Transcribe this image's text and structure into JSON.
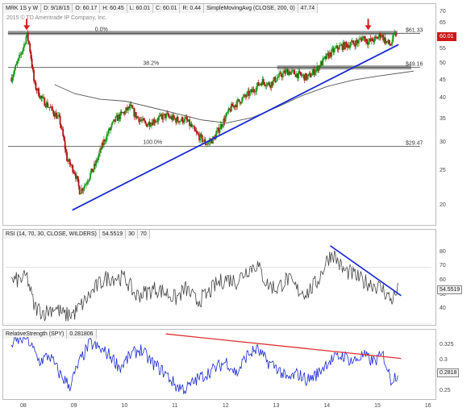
{
  "price_header": {
    "symbol": "MRK 1S y W",
    "date": "D: 9/18/15",
    "open": "O: 60.17",
    "high": "H: 60.45",
    "low": "L: 60.01",
    "close": "C: 60.01",
    "range": "R: 0.44",
    "sma_label": "SimpleMovingAvg (CLOSE, 200, 0)",
    "sma_value": "47.74"
  },
  "copyright": "2015 © TD Ameritrade IP Company, Inc.",
  "rsi_header": {
    "label": "RSI (14, 70, 30, CLOSE, WILDERS)",
    "value": "54.5519",
    "lower": "30",
    "upper": "70"
  },
  "rs_header": {
    "label": "RelativeStrength (SPY)",
    "value": "0.281806"
  },
  "colors": {
    "up": "#1f9a1f",
    "down": "#b01212",
    "sma": "#555555",
    "trendline": "#1a2ad0",
    "rs_line": "#1a2ad0",
    "rs_trend": "#e03030",
    "fib_line": "#444444",
    "resistance_band": "#9a9a9a",
    "arrow": "#d42020"
  },
  "chart_data": [
    {
      "type": "candlestick",
      "title": "",
      "x_labels": [
        "08",
        "09",
        "10",
        "11",
        "12",
        "13",
        "14",
        "15",
        "16"
      ],
      "y_ticks": [
        20,
        25,
        30,
        35,
        40,
        45,
        50,
        55,
        60,
        65,
        70
      ],
      "y_scale": "log",
      "ylim": [
        18,
        70
      ],
      "current_price_tag": "60.01",
      "fib_levels": [
        {
          "label": "0.0%",
          "value": 61.33,
          "tag": "$61.33"
        },
        {
          "label": "38.2%",
          "value": 49.16,
          "tag": "$49.16"
        },
        {
          "label": "100.0%",
          "value": 29.47,
          "tag": "$29.47"
        }
      ],
      "sma_200": [
        {
          "x": 2008.6,
          "y": 44.0
        },
        {
          "x": 2009.0,
          "y": 41.5
        },
        {
          "x": 2009.5,
          "y": 40.0
        },
        {
          "x": 2010.0,
          "y": 39.5
        },
        {
          "x": 2010.5,
          "y": 38.0
        },
        {
          "x": 2011.0,
          "y": 36.5
        },
        {
          "x": 2011.5,
          "y": 35.0
        },
        {
          "x": 2012.0,
          "y": 34.3
        },
        {
          "x": 2012.5,
          "y": 35.5
        },
        {
          "x": 2013.0,
          "y": 38.0
        },
        {
          "x": 2013.5,
          "y": 41.0
        },
        {
          "x": 2014.0,
          "y": 43.5
        },
        {
          "x": 2014.5,
          "y": 45.3
        },
        {
          "x": 2015.0,
          "y": 46.5
        },
        {
          "x": 2015.7,
          "y": 48.0
        }
      ],
      "price_path": [
        {
          "x": 2007.75,
          "y": 46
        },
        {
          "x": 2007.9,
          "y": 52
        },
        {
          "x": 2008.0,
          "y": 57
        },
        {
          "x": 2008.05,
          "y": 61
        },
        {
          "x": 2008.1,
          "y": 57
        },
        {
          "x": 2008.2,
          "y": 44
        },
        {
          "x": 2008.35,
          "y": 40
        },
        {
          "x": 2008.5,
          "y": 38
        },
        {
          "x": 2008.7,
          "y": 35
        },
        {
          "x": 2008.85,
          "y": 27
        },
        {
          "x": 2009.0,
          "y": 25
        },
        {
          "x": 2009.1,
          "y": 22
        },
        {
          "x": 2009.2,
          "y": 23
        },
        {
          "x": 2009.4,
          "y": 26
        },
        {
          "x": 2009.6,
          "y": 31
        },
        {
          "x": 2009.8,
          "y": 35
        },
        {
          "x": 2010.0,
          "y": 37
        },
        {
          "x": 2010.1,
          "y": 38
        },
        {
          "x": 2010.2,
          "y": 36
        },
        {
          "x": 2010.4,
          "y": 34
        },
        {
          "x": 2010.6,
          "y": 35
        },
        {
          "x": 2010.8,
          "y": 36
        },
        {
          "x": 2011.0,
          "y": 35
        },
        {
          "x": 2011.2,
          "y": 35
        },
        {
          "x": 2011.4,
          "y": 32
        },
        {
          "x": 2011.6,
          "y": 30
        },
        {
          "x": 2011.75,
          "y": 31
        },
        {
          "x": 2011.9,
          "y": 34
        },
        {
          "x": 2012.1,
          "y": 38
        },
        {
          "x": 2012.3,
          "y": 40
        },
        {
          "x": 2012.5,
          "y": 42
        },
        {
          "x": 2012.7,
          "y": 45
        },
        {
          "x": 2012.85,
          "y": 44
        },
        {
          "x": 2013.0,
          "y": 46
        },
        {
          "x": 2013.2,
          "y": 48
        },
        {
          "x": 2013.4,
          "y": 47
        },
        {
          "x": 2013.6,
          "y": 46
        },
        {
          "x": 2013.8,
          "y": 49
        },
        {
          "x": 2014.0,
          "y": 53
        },
        {
          "x": 2014.2,
          "y": 56
        },
        {
          "x": 2014.4,
          "y": 57
        },
        {
          "x": 2014.6,
          "y": 58
        },
        {
          "x": 2014.7,
          "y": 60
        },
        {
          "x": 2014.8,
          "y": 58
        },
        {
          "x": 2014.95,
          "y": 59
        },
        {
          "x": 2015.05,
          "y": 61
        },
        {
          "x": 2015.15,
          "y": 58
        },
        {
          "x": 2015.25,
          "y": 57
        },
        {
          "x": 2015.3,
          "y": 60
        },
        {
          "x": 2015.35,
          "y": 61
        }
      ],
      "trendline": [
        {
          "x": 2008.95,
          "y": 19.5
        },
        {
          "x": 2015.4,
          "y": 57
        }
      ],
      "top_arrows": [
        {
          "x": 2008.05,
          "y": 61.33
        },
        {
          "x": 2014.8,
          "y": 61.33
        }
      ],
      "resistance_band": {
        "x_start": 2007.68,
        "x_end": 2015.38,
        "y": 61.33
      },
      "support_band": {
        "x_start": 2013.0,
        "x_end": 2015.65,
        "y": 49.16
      }
    },
    {
      "type": "line",
      "title": "RSI",
      "y_ticks": [
        40,
        50,
        60,
        70,
        80
      ],
      "ylim": [
        30,
        90
      ],
      "values": [
        {
          "x": 2007.75,
          "y": 60
        },
        {
          "x": 2008.0,
          "y": 62
        },
        {
          "x": 2008.05,
          "y": 64
        },
        {
          "x": 2008.2,
          "y": 42
        },
        {
          "x": 2008.4,
          "y": 38
        },
        {
          "x": 2008.6,
          "y": 42
        },
        {
          "x": 2008.8,
          "y": 36
        },
        {
          "x": 2009.0,
          "y": 38
        },
        {
          "x": 2009.2,
          "y": 46
        },
        {
          "x": 2009.4,
          "y": 55
        },
        {
          "x": 2009.6,
          "y": 62
        },
        {
          "x": 2009.8,
          "y": 63
        },
        {
          "x": 2010.0,
          "y": 62
        },
        {
          "x": 2010.2,
          "y": 50
        },
        {
          "x": 2010.4,
          "y": 52
        },
        {
          "x": 2010.6,
          "y": 55
        },
        {
          "x": 2010.8,
          "y": 52
        },
        {
          "x": 2011.0,
          "y": 48
        },
        {
          "x": 2011.2,
          "y": 55
        },
        {
          "x": 2011.4,
          "y": 46
        },
        {
          "x": 2011.6,
          "y": 50
        },
        {
          "x": 2011.8,
          "y": 58
        },
        {
          "x": 2012.0,
          "y": 62
        },
        {
          "x": 2012.2,
          "y": 60
        },
        {
          "x": 2012.4,
          "y": 68
        },
        {
          "x": 2012.6,
          "y": 72
        },
        {
          "x": 2012.8,
          "y": 58
        },
        {
          "x": 2013.0,
          "y": 55
        },
        {
          "x": 2013.2,
          "y": 62
        },
        {
          "x": 2013.4,
          "y": 54
        },
        {
          "x": 2013.6,
          "y": 52
        },
        {
          "x": 2013.8,
          "y": 60
        },
        {
          "x": 2014.0,
          "y": 76
        },
        {
          "x": 2014.1,
          "y": 80
        },
        {
          "x": 2014.3,
          "y": 68
        },
        {
          "x": 2014.5,
          "y": 65
        },
        {
          "x": 2014.7,
          "y": 60
        },
        {
          "x": 2014.9,
          "y": 58
        },
        {
          "x": 2015.1,
          "y": 54
        },
        {
          "x": 2015.25,
          "y": 47
        },
        {
          "x": 2015.35,
          "y": 51
        },
        {
          "x": 2015.4,
          "y": 54.55
        }
      ],
      "trendline": [
        {
          "x": 2014.05,
          "y": 85
        },
        {
          "x": 2015.45,
          "y": 50
        }
      ]
    },
    {
      "type": "line",
      "title": "RelativeStrength",
      "y_ticks": [
        0.25,
        0.3,
        0.325
      ],
      "ylim": [
        0.24,
        0.34
      ],
      "values": [
        {
          "x": 2007.75,
          "y": 0.33
        },
        {
          "x": 2008.05,
          "y": 0.34
        },
        {
          "x": 2008.3,
          "y": 0.3
        },
        {
          "x": 2008.5,
          "y": 0.31
        },
        {
          "x": 2008.7,
          "y": 0.28
        },
        {
          "x": 2008.9,
          "y": 0.26
        },
        {
          "x": 2009.1,
          "y": 0.3
        },
        {
          "x": 2009.3,
          "y": 0.33
        },
        {
          "x": 2009.5,
          "y": 0.32
        },
        {
          "x": 2009.7,
          "y": 0.31
        },
        {
          "x": 2009.9,
          "y": 0.29
        },
        {
          "x": 2010.1,
          "y": 0.31
        },
        {
          "x": 2010.3,
          "y": 0.32
        },
        {
          "x": 2010.5,
          "y": 0.3
        },
        {
          "x": 2010.8,
          "y": 0.28
        },
        {
          "x": 2011.0,
          "y": 0.26
        },
        {
          "x": 2011.2,
          "y": 0.255
        },
        {
          "x": 2011.4,
          "y": 0.27
        },
        {
          "x": 2011.6,
          "y": 0.28
        },
        {
          "x": 2011.8,
          "y": 0.29
        },
        {
          "x": 2012.0,
          "y": 0.3
        },
        {
          "x": 2012.2,
          "y": 0.28
        },
        {
          "x": 2012.4,
          "y": 0.31
        },
        {
          "x": 2012.6,
          "y": 0.32
        },
        {
          "x": 2012.8,
          "y": 0.3
        },
        {
          "x": 2013.0,
          "y": 0.29
        },
        {
          "x": 2013.2,
          "y": 0.27
        },
        {
          "x": 2013.4,
          "y": 0.28
        },
        {
          "x": 2013.6,
          "y": 0.27
        },
        {
          "x": 2013.8,
          "y": 0.28
        },
        {
          "x": 2014.0,
          "y": 0.3
        },
        {
          "x": 2014.3,
          "y": 0.31
        },
        {
          "x": 2014.5,
          "y": 0.3
        },
        {
          "x": 2014.7,
          "y": 0.31
        },
        {
          "x": 2014.9,
          "y": 0.3
        },
        {
          "x": 2015.1,
          "y": 0.31
        },
        {
          "x": 2015.25,
          "y": 0.27
        },
        {
          "x": 2015.4,
          "y": 0.2818
        }
      ],
      "trendline": [
        {
          "x": 2010.8,
          "y": 0.345
        },
        {
          "x": 2015.45,
          "y": 0.305
        }
      ]
    }
  ],
  "tags": {
    "price_scale": [
      "70",
      "65",
      "60",
      "55",
      "50",
      "45",
      "40",
      "35",
      "30",
      "25",
      "20"
    ],
    "rsi_scale": [
      "80",
      "70",
      "60",
      "50",
      "40"
    ],
    "rsi_current": "54.5519",
    "rs_scale": [
      "0.325",
      "0.3",
      "0.25"
    ],
    "rs_current": "0.2818"
  }
}
